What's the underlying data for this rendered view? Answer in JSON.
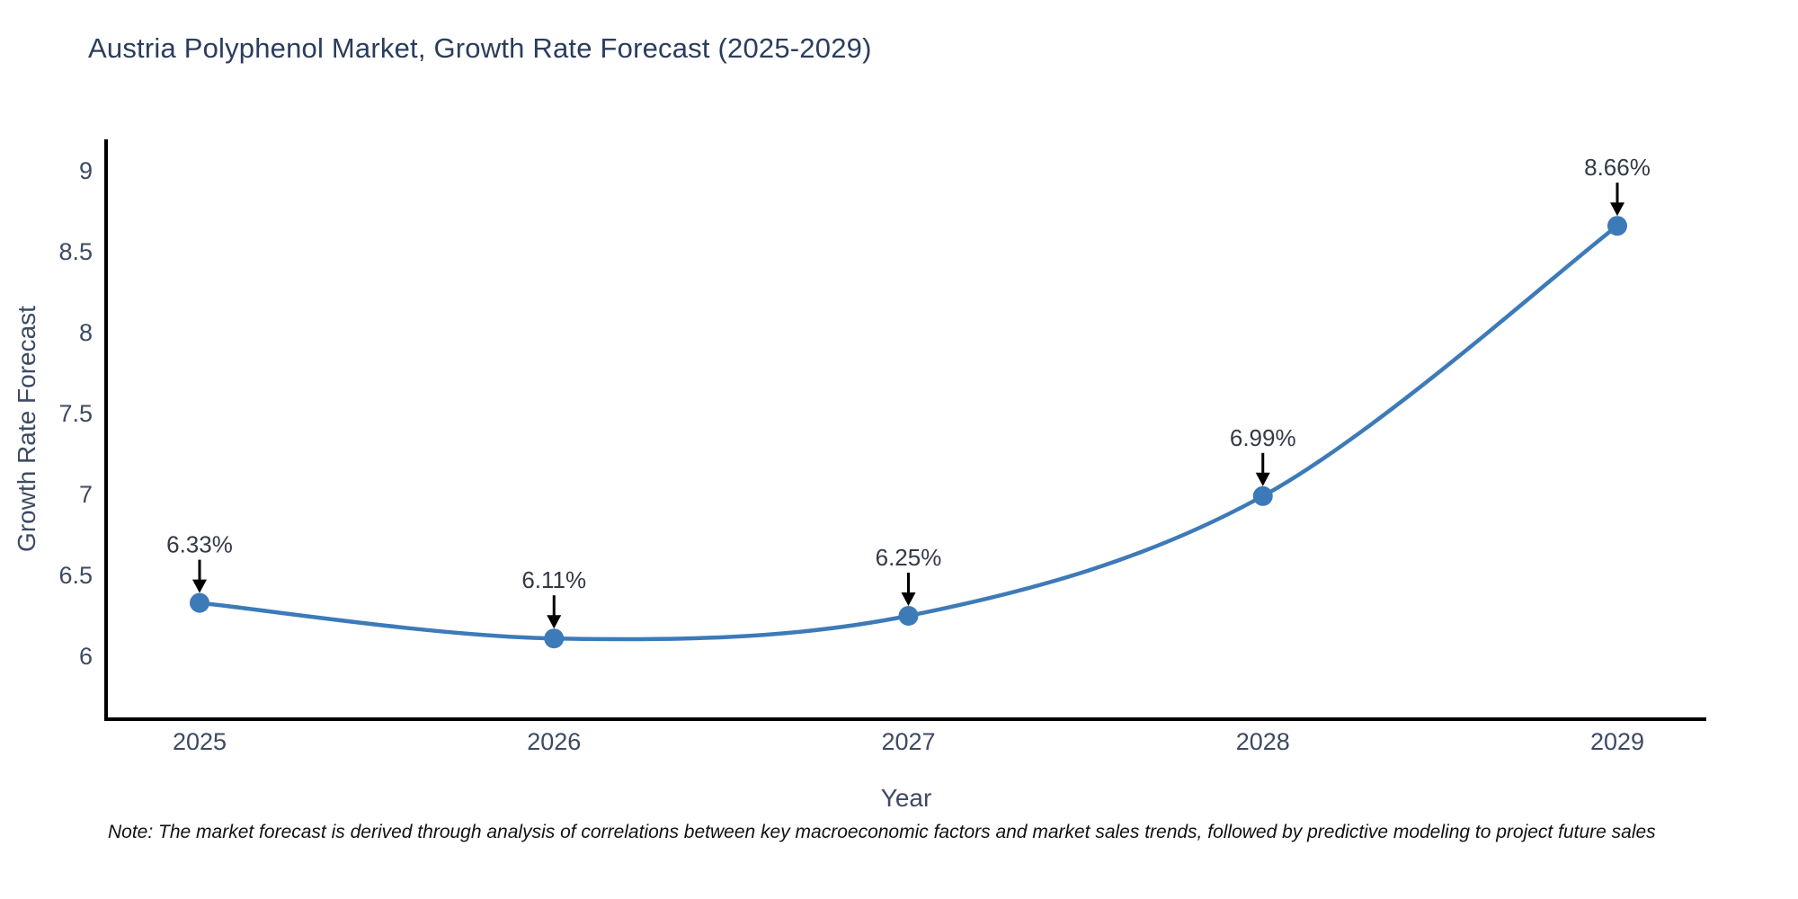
{
  "title": "Austria Polyphenol Market, Growth Rate Forecast (2025-2029)",
  "note": "Note: The market forecast is derived through analysis of correlations between key macroeconomic factors and market sales trends, followed by predictive modeling to project future sales",
  "chart_data": {
    "type": "line",
    "title": "Austria Polyphenol Market, Growth Rate Forecast (2025-2029)",
    "xlabel": "Year",
    "ylabel": "Growth Rate Forecast",
    "x": [
      2025,
      2026,
      2027,
      2028,
      2029
    ],
    "categories": [
      "2025",
      "2026",
      "2027",
      "2028",
      "2029"
    ],
    "series": [
      {
        "name": "Growth Rate Forecast",
        "values": [
          6.33,
          6.11,
          6.25,
          6.99,
          8.66
        ],
        "point_labels": [
          "6.33%",
          "6.11%",
          "6.25%",
          "6.99%",
          "8.66%"
        ]
      }
    ],
    "ytick_values": [
      6,
      6.5,
      7,
      7.5,
      8,
      8.5,
      9
    ],
    "ytick_labels": [
      "6",
      "6.5",
      "7",
      "7.5",
      "8",
      "8.5",
      "9"
    ],
    "ylim": [
      5.61,
      9.25
    ],
    "grid": false,
    "legend_position": "none",
    "line_shape": "spline",
    "annotation_arrows": true,
    "colors": {
      "line": "#3d7ab8",
      "marker": "#3d7ab8",
      "arrow": "#000000",
      "spine": "#000000",
      "title_text": "#2b3d5c",
      "axis_text": "#3d4a63",
      "annotation_text": "#333a46",
      "note_text": "#111111",
      "background": "#ffffff"
    }
  }
}
